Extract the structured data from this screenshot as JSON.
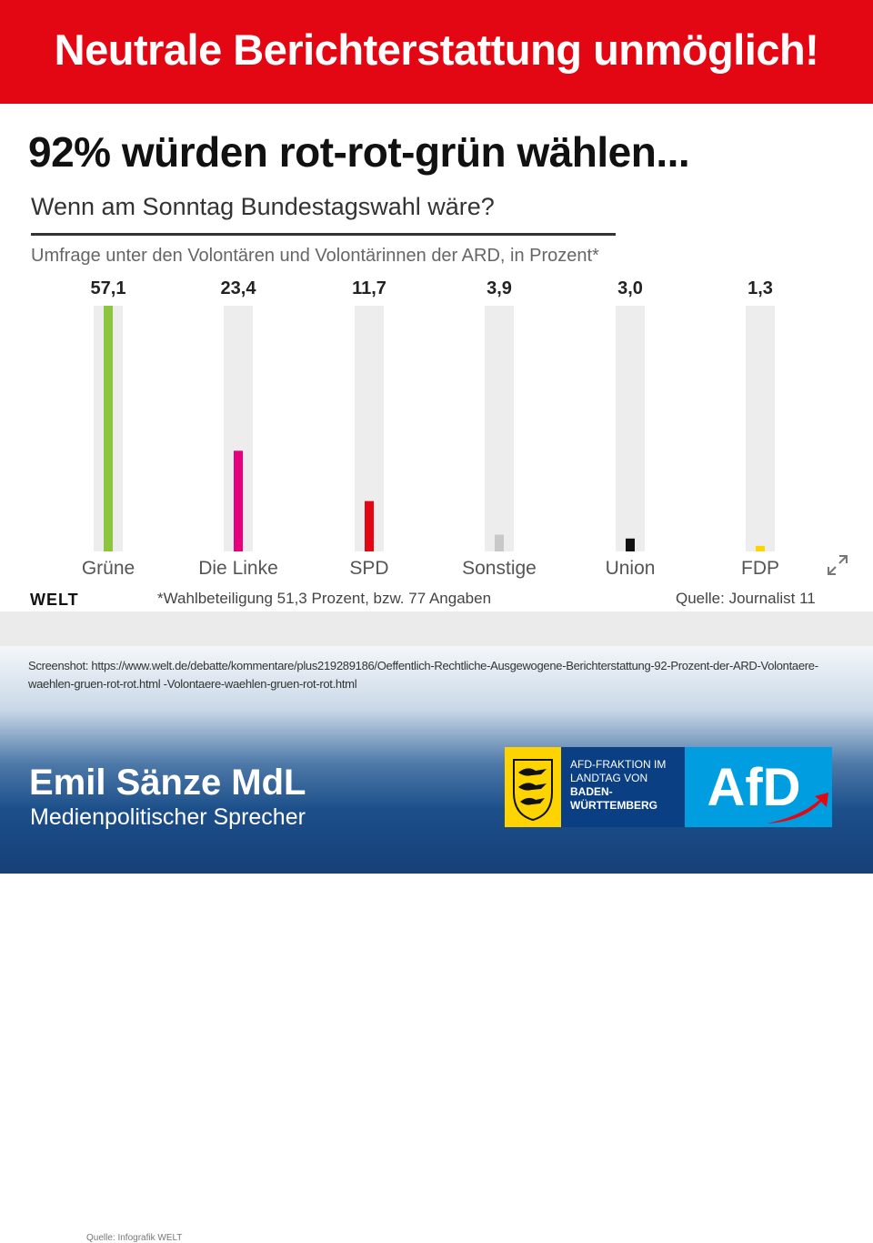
{
  "banner": {
    "title": "Neutrale Berichterstattung unmöglich!"
  },
  "headline": "92% würden rot-rot-grün wählen...",
  "chart_data": {
    "type": "bar",
    "title": "Wenn am Sonntag Bundestagswahl wäre?",
    "subtitle": "Umfrage unter den Volontären und Volontärinnen der ARD, in Prozent*",
    "categories": [
      "Grüne",
      "Die Linke",
      "SPD",
      "Sonstige",
      "Union",
      "FDP"
    ],
    "values": [
      57.1,
      23.4,
      11.7,
      3.9,
      3.0,
      1.3
    ],
    "value_labels": [
      "57,1",
      "23,4",
      "11,7",
      "3,9",
      "3,0",
      "1,3"
    ],
    "colors": [
      "#8cc63f",
      "#e6007e",
      "#e30613",
      "#c8c8c8",
      "#111111",
      "#ffd400"
    ],
    "track_color": "#ededed",
    "ylim": [
      0,
      57.1
    ],
    "grid": false,
    "legend": "none"
  },
  "chart_footer": {
    "logo": "WELT",
    "footnote": "*Wahlbeteiligung 51,3 Prozent, bzw. 77 Angaben",
    "source": "Quelle: Journalist 11",
    "credit": "Quelle: Infografik WELT",
    "expand_icon": "expand-arrows-icon"
  },
  "screenshot_note": "Screenshot: https://www.welt.de/debatte/kommentare/plus219289186/Oeffentlich-Rechtliche-Ausgewogene-Berichterstattung-92-Prozent-der-ARD-Volontaere-waehlen-gruen-rot-rot.html -Volontaere-waehlen-gruen-rot-rot.html",
  "footer": {
    "name": "Emil Sänze MdL",
    "role": "Medienpolitischer Sprecher",
    "fraktion_lines": [
      "AFD-FRAKTION IM",
      "LANDTAG VON",
      "BADEN-",
      "WÜRTTEMBERG"
    ],
    "afd_logo_text": "AfD",
    "coat_icon": "baden-wuerttemberg-coat-of-arms-icon",
    "colors": {
      "red": "#e30613",
      "blue": "#0b3f84",
      "afd_blue": "#009ee0",
      "yellow": "#fdd400"
    }
  }
}
